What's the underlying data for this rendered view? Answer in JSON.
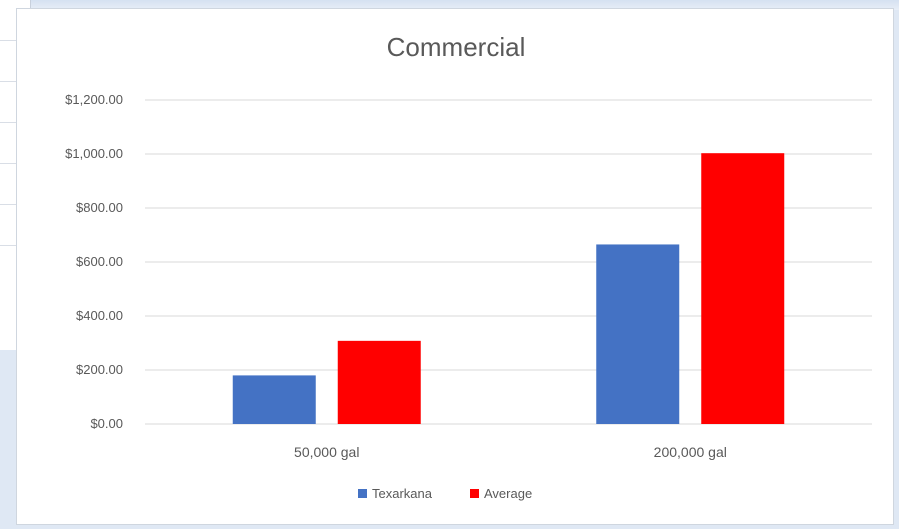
{
  "chart_data": {
    "type": "bar",
    "title": "Commercial",
    "categories": [
      "50,000 gal",
      "200,000 gal"
    ],
    "series": [
      {
        "name": "Texarkana",
        "color": "#4472c4",
        "values": [
          180,
          665
        ]
      },
      {
        "name": "Average",
        "color": "#ff0000",
        "values": [
          308,
          1003
        ]
      }
    ],
    "ylim": [
      0,
      1200
    ],
    "yticks": [
      0,
      200,
      400,
      600,
      800,
      1000,
      1200
    ],
    "ytick_labels": [
      "$0.00",
      "$200.00",
      "$400.00",
      "$600.00",
      "$800.00",
      "$1,000.00",
      "$1,200.00"
    ],
    "xlabel": "",
    "ylabel": "",
    "grid": true,
    "legend_position": "bottom"
  }
}
